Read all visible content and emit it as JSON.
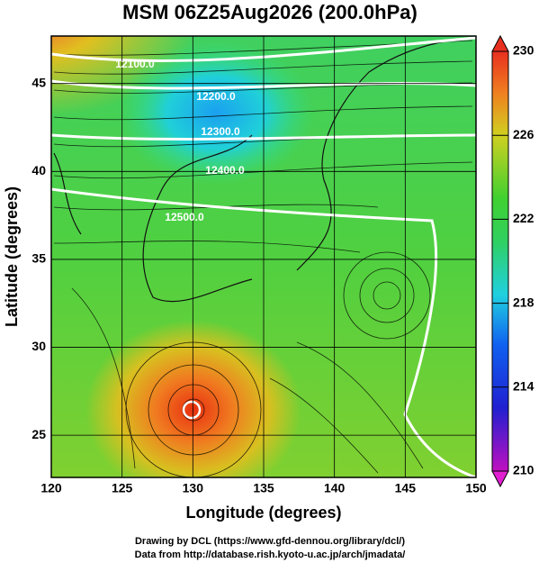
{
  "chart_data": {
    "type": "map",
    "title": "MSM 06Z25Aug2026 (200.0hPa)",
    "x_label": "Longitude (degrees)",
    "y_label": "Latitude  (degrees)",
    "xlim": [
      120,
      150
    ],
    "ylim": [
      22.6,
      47.7
    ],
    "xticks": [
      120,
      125,
      130,
      135,
      140,
      145,
      150
    ],
    "yticks": [
      25,
      30,
      35,
      40,
      45
    ],
    "grid": true,
    "colorbar": {
      "lim": [
        210,
        230
      ],
      "ticks": [
        210,
        214,
        218,
        222,
        226,
        230
      ]
    },
    "contour_labels": [
      "12100.0",
      "12200.0",
      "12300.0",
      "12400.0",
      "12500.0"
    ]
  },
  "footer": {
    "lines": [
      "Drawing by DCL (https://www.gfd-dennou.org/library/dcl/)",
      "Data from http://database.rish.kyoto-u.ac.jp/arch/jmadata/"
    ]
  }
}
